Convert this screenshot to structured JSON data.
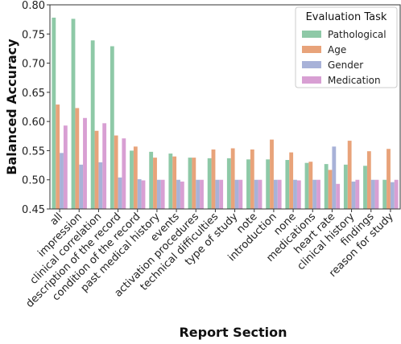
{
  "chart_data": {
    "type": "bar",
    "xlabel": "Report Section",
    "ylabel": "Balanced Accuracy",
    "ylim": [
      0.45,
      0.8
    ],
    "yticks": [
      "0.45",
      "0.50",
      "0.55",
      "0.60",
      "0.65",
      "0.70",
      "0.75",
      "0.80"
    ],
    "grid": false,
    "legend": {
      "title": "Evaluation Task",
      "placement": "top-right"
    },
    "categories": [
      "all",
      "impression",
      "clinical correlation",
      "description of the record",
      "condition of the record",
      "past medical history",
      "events",
      "activation procedures",
      "technical difficulties",
      "type of study",
      "note",
      "introduction",
      "none",
      "medications",
      "heart rate",
      "clinical history",
      "findings",
      "reason for study"
    ],
    "series": [
      {
        "name": "Pathological",
        "color": "#8ec9a7",
        "values": [
          0.778,
          0.776,
          0.739,
          0.729,
          0.55,
          0.548,
          0.545,
          0.538,
          0.537,
          0.537,
          0.535,
          0.535,
          0.534,
          0.529,
          0.527,
          0.526,
          0.524,
          0.5
        ]
      },
      {
        "name": "Age",
        "color": "#e8a37a",
        "values": [
          0.629,
          0.623,
          0.584,
          0.576,
          0.557,
          0.538,
          0.54,
          0.538,
          0.552,
          0.554,
          0.552,
          0.569,
          0.547,
          0.531,
          0.517,
          0.567,
          0.549,
          0.553
        ]
      },
      {
        "name": "Gender",
        "color": "#a8b2d8",
        "values": [
          0.546,
          0.526,
          0.53,
          0.504,
          0.501,
          0.5,
          0.5,
          0.5,
          0.5,
          0.5,
          0.5,
          0.5,
          0.5,
          0.5,
          0.557,
          0.497,
          0.5,
          0.496
        ]
      },
      {
        "name": "Medication",
        "color": "#d89fd3",
        "values": [
          0.593,
          0.606,
          0.597,
          0.571,
          0.499,
          0.5,
          0.497,
          0.5,
          0.5,
          0.5,
          0.5,
          0.5,
          0.499,
          0.5,
          0.493,
          0.5,
          0.5,
          0.5
        ]
      }
    ]
  }
}
